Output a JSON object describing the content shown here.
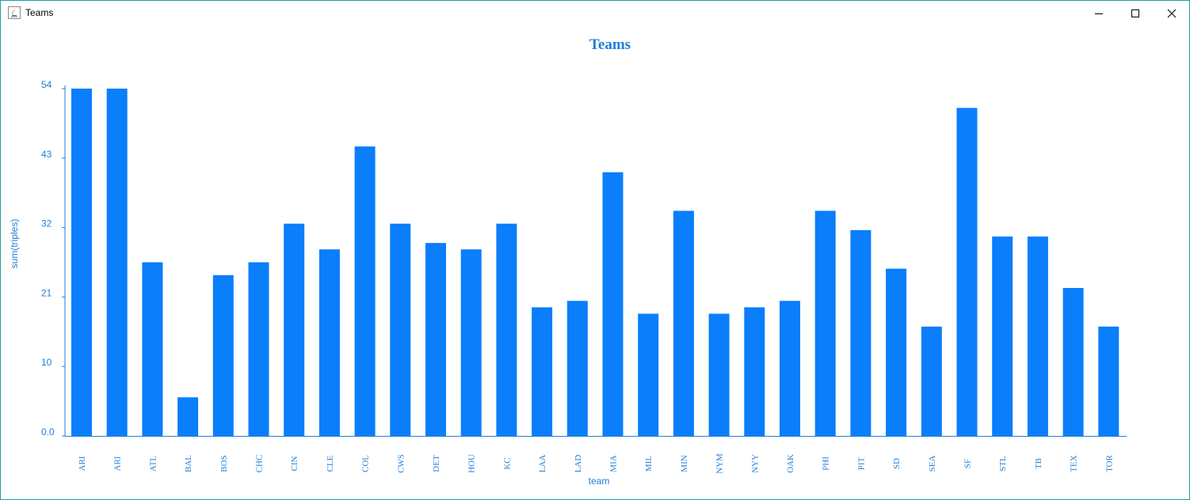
{
  "window": {
    "title": "Teams",
    "controls": [
      "minimize-icon",
      "maximize-icon",
      "close-icon"
    ]
  },
  "colors": {
    "bar": "#0a7efb",
    "text": "#1f7fd6",
    "axis": "#1f7fd6",
    "border": "#1fa0a0"
  },
  "chart_data": {
    "type": "bar",
    "title": "Teams",
    "xlabel": "team",
    "ylabel": "sum(triples)",
    "ylim": [
      0,
      54
    ],
    "yticks": [
      "0.0",
      "10",
      "21",
      "32",
      "43",
      "54"
    ],
    "ytick_values": [
      0,
      10.8,
      21.6,
      32.4,
      43.2,
      54
    ],
    "grid": false,
    "legend": "none",
    "categories": [
      "ARI",
      "ARI",
      "ATL",
      "BAL",
      "BOS",
      "CHC",
      "CIN",
      "CLE",
      "COL",
      "CWS",
      "DET",
      "HOU",
      "KC",
      "LAA",
      "LAD",
      "MIA",
      "MIL",
      "MIN",
      "NYM",
      "NYY",
      "OAK",
      "PHI",
      "PIT",
      "SD",
      "SEA",
      "SF",
      "STL",
      "TB",
      "TEX",
      "TOR"
    ],
    "values": [
      54,
      54,
      27,
      6,
      25,
      27,
      33,
      29,
      45,
      33,
      30,
      29,
      33,
      20,
      21,
      41,
      19,
      35,
      19,
      20,
      21,
      35,
      32,
      26,
      17,
      51,
      31,
      31,
      23,
      17
    ]
  }
}
